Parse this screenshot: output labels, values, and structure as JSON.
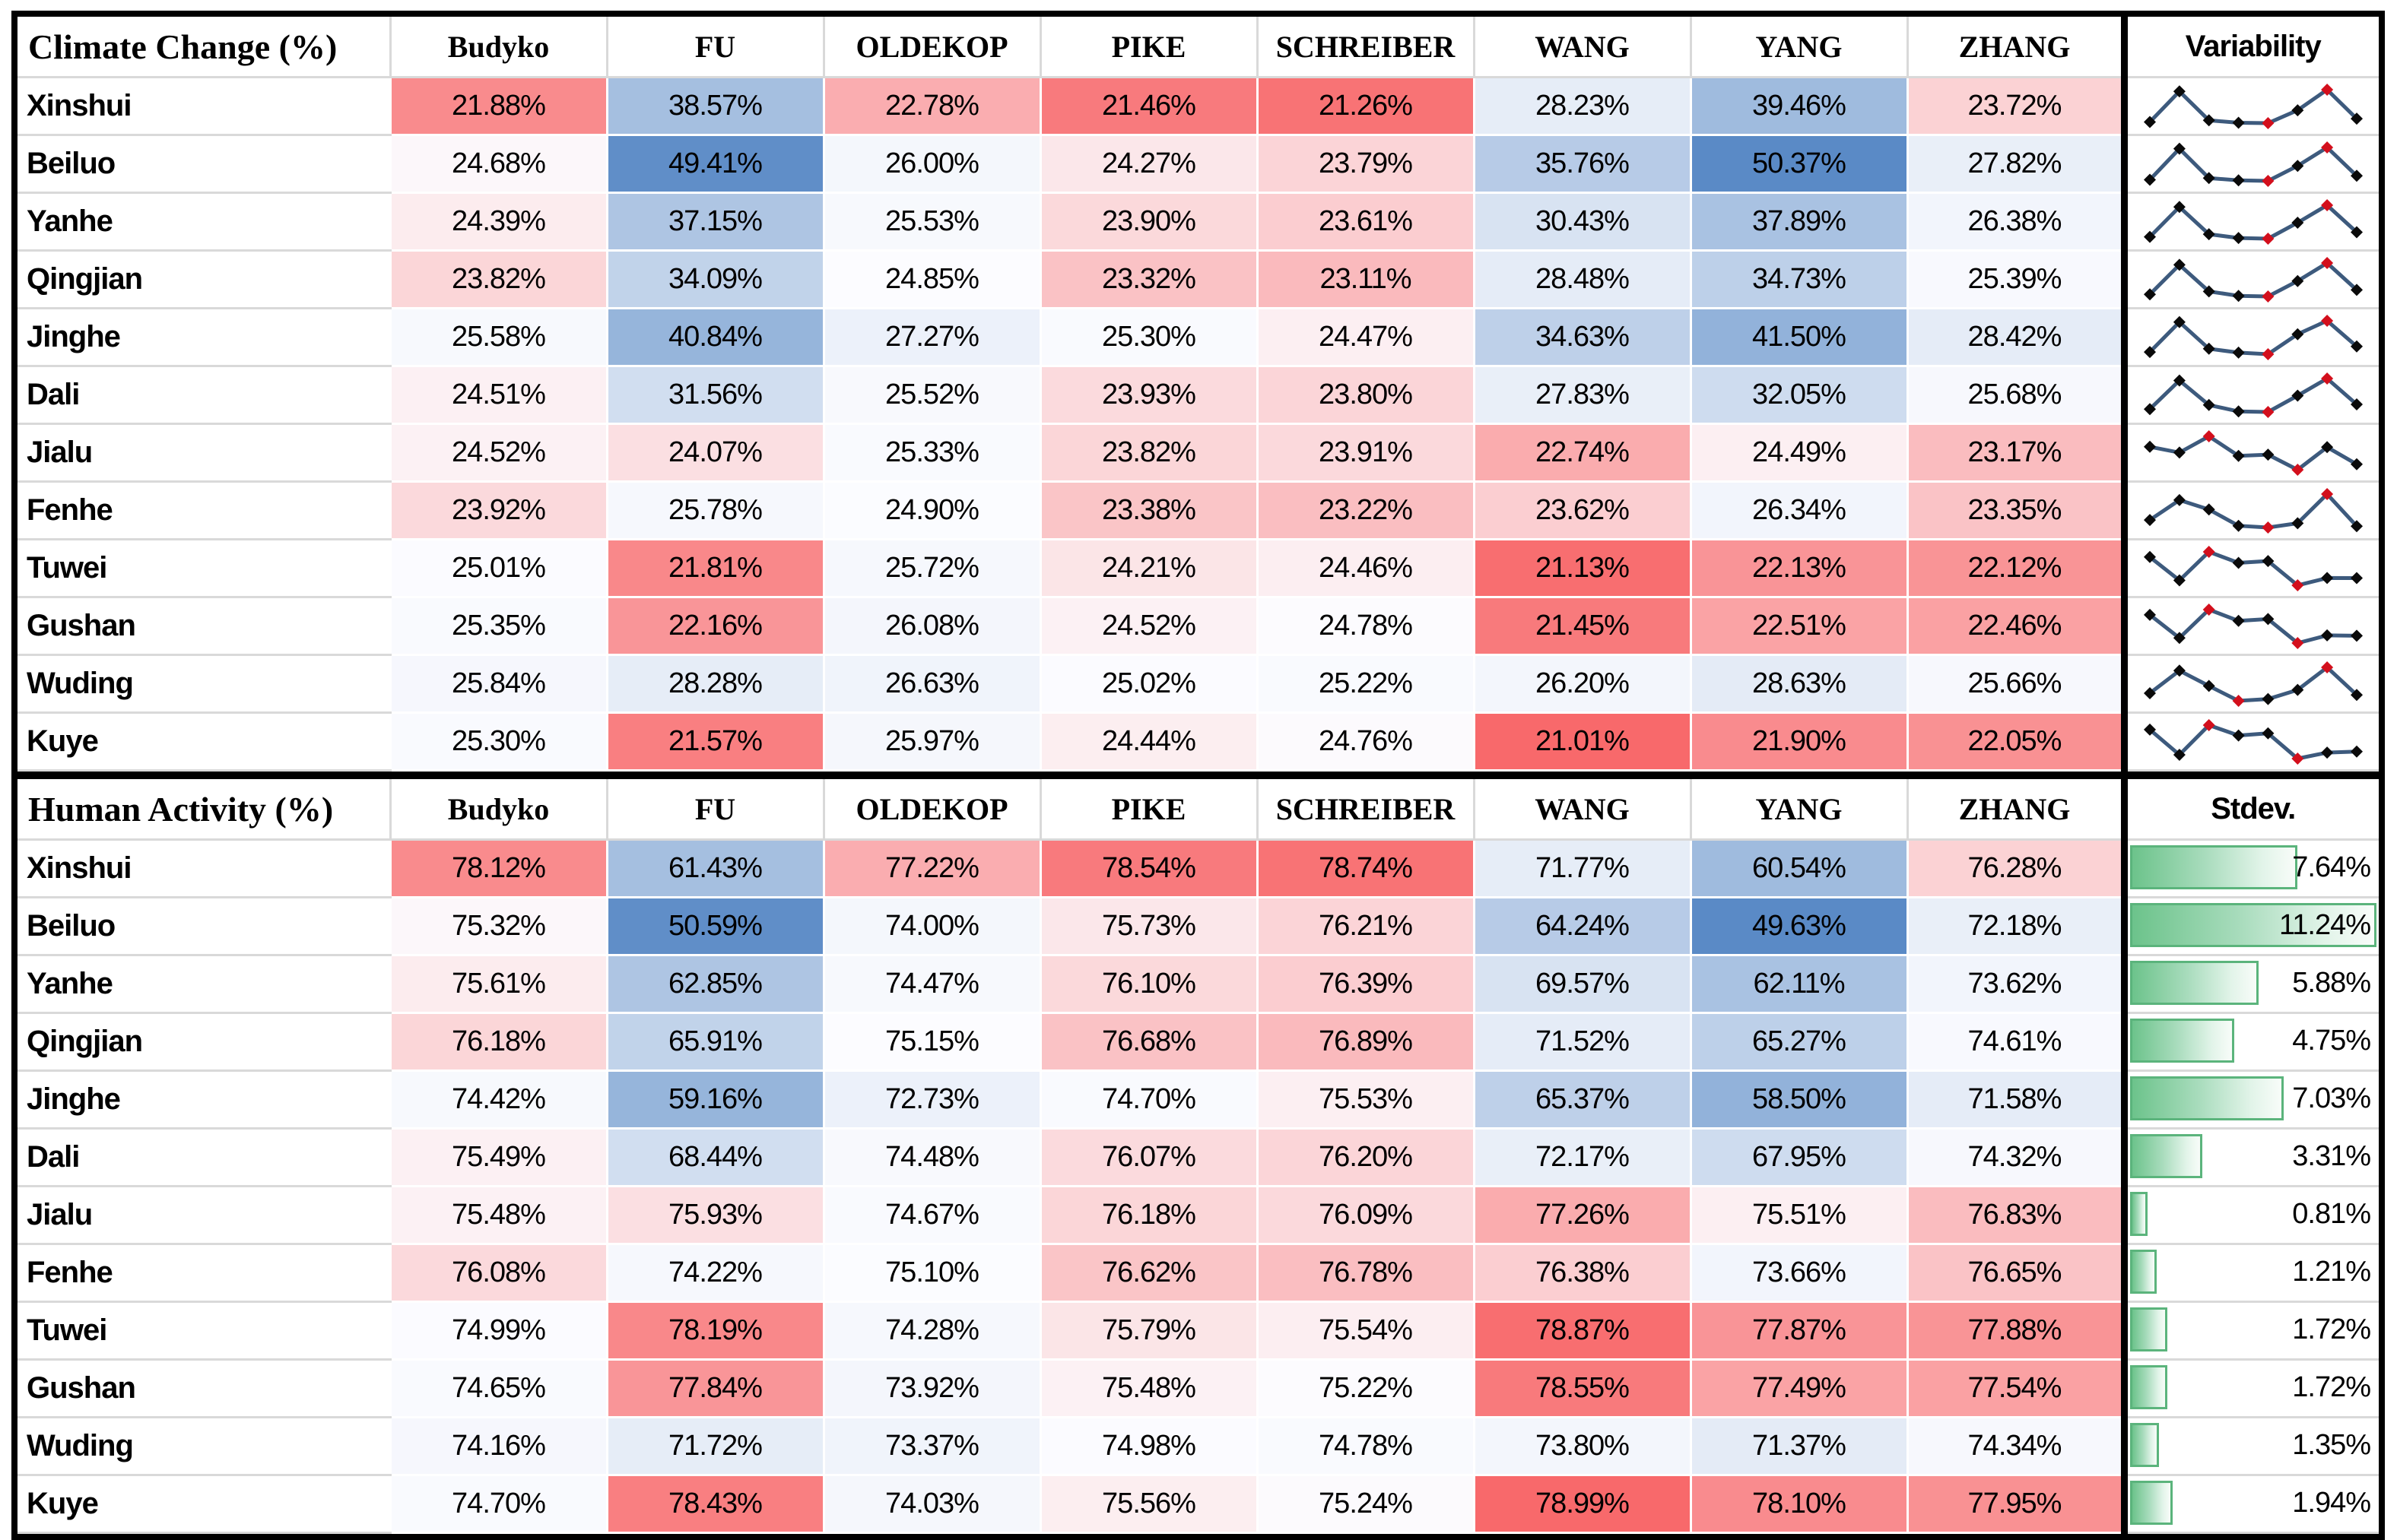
{
  "chart_data": {
    "type": "table",
    "subtype": "heatmap-table-with-sparklines-and-databars",
    "colors": {
      "scale_low_red": "#F8696B",
      "scale_mid_white": "#FCFCFF",
      "scale_high_blue": "#5A8AC6",
      "grid_gray": "#D9D9D9",
      "spark_line": "#3D5A7D",
      "spark_marker": "#0A0A0A",
      "spark_extreme_marker": "#D30F1C",
      "databar_border": "#5BB47C",
      "databar_fill_start": "#6CC38B"
    },
    "sections": [
      {
        "title": "Climate Change (%)",
        "columns": [
          "Budyko",
          "FU",
          "OLDEKOP",
          "PIKE",
          "SCHREIBER",
          "WANG",
          "YANG",
          "ZHANG"
        ],
        "extra_column": "Variability",
        "extra_type": "sparkline",
        "min_color": "#F8696B",
        "max_color": "#5A8AC6",
        "rows": [
          {
            "basin": "Xinshui",
            "values": [
              "21.88%",
              "38.57%",
              "22.78%",
              "21.46%",
              "21.26%",
              "28.23%",
              "39.46%",
              "23.72%"
            ]
          },
          {
            "basin": "Beiluo",
            "values": [
              "24.68%",
              "49.41%",
              "26.00%",
              "24.27%",
              "23.79%",
              "35.76%",
              "50.37%",
              "27.82%"
            ]
          },
          {
            "basin": "Yanhe",
            "values": [
              "24.39%",
              "37.15%",
              "25.53%",
              "23.90%",
              "23.61%",
              "30.43%",
              "37.89%",
              "26.38%"
            ]
          },
          {
            "basin": "Qingjian",
            "values": [
              "23.82%",
              "34.09%",
              "24.85%",
              "23.32%",
              "23.11%",
              "28.48%",
              "34.73%",
              "25.39%"
            ]
          },
          {
            "basin": "Jinghe",
            "values": [
              "25.58%",
              "40.84%",
              "27.27%",
              "25.30%",
              "24.47%",
              "34.63%",
              "41.50%",
              "28.42%"
            ]
          },
          {
            "basin": "Dali",
            "values": [
              "24.51%",
              "31.56%",
              "25.52%",
              "23.93%",
              "23.80%",
              "27.83%",
              "32.05%",
              "25.68%"
            ]
          },
          {
            "basin": "Jialu",
            "values": [
              "24.52%",
              "24.07%",
              "25.33%",
              "23.82%",
              "23.91%",
              "22.74%",
              "24.49%",
              "23.17%"
            ]
          },
          {
            "basin": "Fenhe",
            "values": [
              "23.92%",
              "25.78%",
              "24.90%",
              "23.38%",
              "23.22%",
              "23.62%",
              "26.34%",
              "23.35%"
            ]
          },
          {
            "basin": "Tuwei",
            "values": [
              "25.01%",
              "21.81%",
              "25.72%",
              "24.21%",
              "24.46%",
              "21.13%",
              "22.13%",
              "22.12%"
            ]
          },
          {
            "basin": "Gushan",
            "values": [
              "25.35%",
              "22.16%",
              "26.08%",
              "24.52%",
              "24.78%",
              "21.45%",
              "22.51%",
              "22.46%"
            ]
          },
          {
            "basin": "Wuding",
            "values": [
              "25.84%",
              "28.28%",
              "26.63%",
              "25.02%",
              "25.22%",
              "26.20%",
              "28.63%",
              "25.66%"
            ]
          },
          {
            "basin": "Kuye",
            "values": [
              "25.30%",
              "21.57%",
              "25.97%",
              "24.44%",
              "24.76%",
              "21.01%",
              "21.90%",
              "22.05%"
            ]
          }
        ]
      },
      {
        "title": "Human Activity (%)",
        "columns": [
          "Budyko",
          "FU",
          "OLDEKOP",
          "PIKE",
          "SCHREIBER",
          "WANG",
          "YANG",
          "ZHANG"
        ],
        "extra_column": "Stdev.",
        "extra_type": "databar",
        "min_color": "#5A8AC6",
        "max_color": "#F8696B",
        "rows": [
          {
            "basin": "Xinshui",
            "values": [
              "78.12%",
              "61.43%",
              "77.22%",
              "78.54%",
              "78.74%",
              "71.77%",
              "60.54%",
              "76.28%"
            ],
            "stdev": "7.64%"
          },
          {
            "basin": "Beiluo",
            "values": [
              "75.32%",
              "50.59%",
              "74.00%",
              "75.73%",
              "76.21%",
              "64.24%",
              "49.63%",
              "72.18%"
            ],
            "stdev": "11.24%"
          },
          {
            "basin": "Yanhe",
            "values": [
              "75.61%",
              "62.85%",
              "74.47%",
              "76.10%",
              "76.39%",
              "69.57%",
              "62.11%",
              "73.62%"
            ],
            "stdev": "5.88%"
          },
          {
            "basin": "Qingjian",
            "values": [
              "76.18%",
              "65.91%",
              "75.15%",
              "76.68%",
              "76.89%",
              "71.52%",
              "65.27%",
              "74.61%"
            ],
            "stdev": "4.75%"
          },
          {
            "basin": "Jinghe",
            "values": [
              "74.42%",
              "59.16%",
              "72.73%",
              "74.70%",
              "75.53%",
              "65.37%",
              "58.50%",
              "71.58%"
            ],
            "stdev": "7.03%"
          },
          {
            "basin": "Dali",
            "values": [
              "75.49%",
              "68.44%",
              "74.48%",
              "76.07%",
              "76.20%",
              "72.17%",
              "67.95%",
              "74.32%"
            ],
            "stdev": "3.31%"
          },
          {
            "basin": "Jialu",
            "values": [
              "75.48%",
              "75.93%",
              "74.67%",
              "76.18%",
              "76.09%",
              "77.26%",
              "75.51%",
              "76.83%"
            ],
            "stdev": "0.81%"
          },
          {
            "basin": "Fenhe",
            "values": [
              "76.08%",
              "74.22%",
              "75.10%",
              "76.62%",
              "76.78%",
              "76.38%",
              "73.66%",
              "76.65%"
            ],
            "stdev": "1.21%"
          },
          {
            "basin": "Tuwei",
            "values": [
              "74.99%",
              "78.19%",
              "74.28%",
              "75.79%",
              "75.54%",
              "78.87%",
              "77.87%",
              "77.88%"
            ],
            "stdev": "1.72%"
          },
          {
            "basin": "Gushan",
            "values": [
              "74.65%",
              "77.84%",
              "73.92%",
              "75.48%",
              "75.22%",
              "78.55%",
              "77.49%",
              "77.54%"
            ],
            "stdev": "1.72%"
          },
          {
            "basin": "Wuding",
            "values": [
              "74.16%",
              "71.72%",
              "73.37%",
              "74.98%",
              "74.78%",
              "73.80%",
              "71.37%",
              "74.34%"
            ],
            "stdev": "1.35%"
          },
          {
            "basin": "Kuye",
            "values": [
              "74.70%",
              "78.43%",
              "74.03%",
              "75.56%",
              "75.24%",
              "78.99%",
              "78.10%",
              "77.95%"
            ],
            "stdev": "1.94%"
          }
        ]
      }
    ]
  }
}
